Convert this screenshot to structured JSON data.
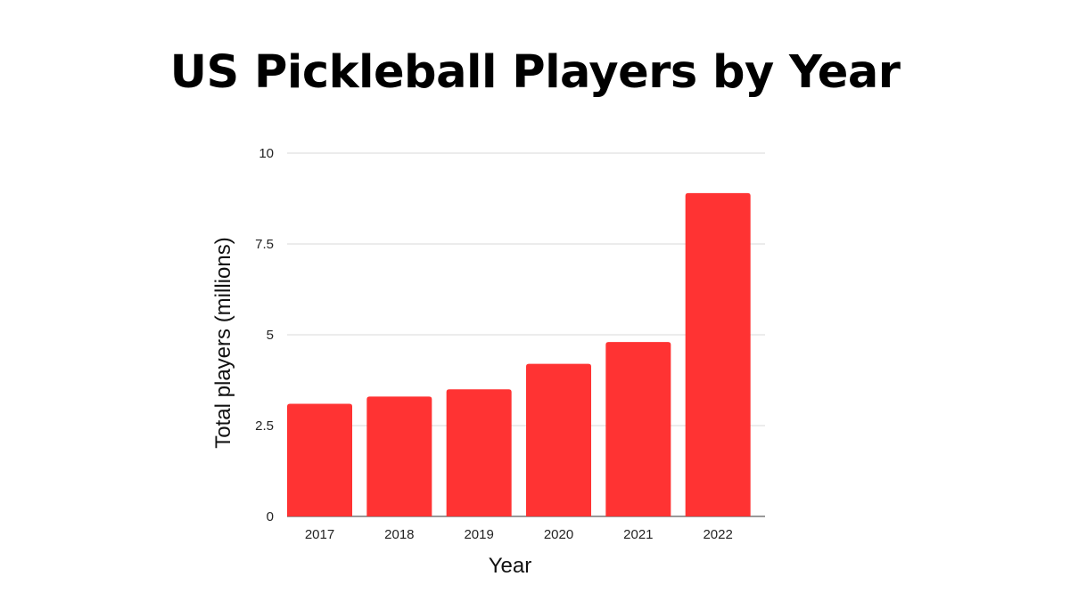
{
  "chart_data": {
    "type": "bar",
    "title": "US Pickleball Players by Year",
    "xlabel": "Year",
    "ylabel": "Total players (millions)",
    "categories": [
      "2017",
      "2018",
      "2019",
      "2020",
      "2021",
      "2022"
    ],
    "values": [
      3.1,
      3.3,
      3.5,
      4.2,
      4.8,
      8.9
    ],
    "ylim": [
      0,
      10
    ],
    "yticks": [
      0,
      2.5,
      5,
      7.5,
      10
    ],
    "ytick_labels": [
      "0",
      "2.5",
      "5",
      "7.5",
      "10"
    ],
    "grid": true,
    "legend": "none",
    "bar_color": "#ff3333"
  }
}
